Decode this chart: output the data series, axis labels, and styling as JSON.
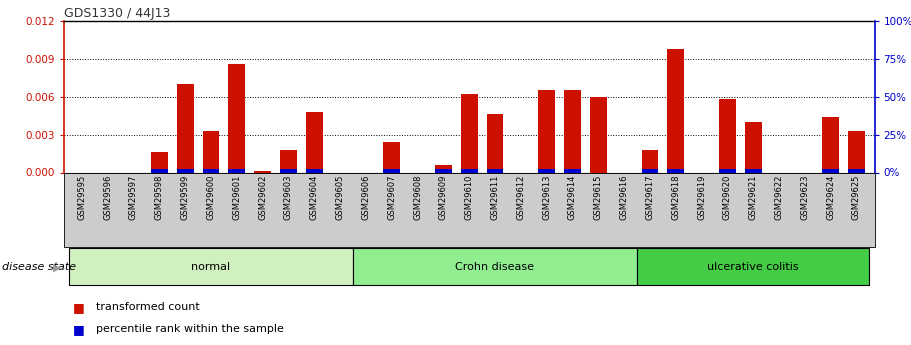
{
  "title": "GDS1330 / 44J13",
  "samples": [
    "GSM29595",
    "GSM29596",
    "GSM29597",
    "GSM29598",
    "GSM29599",
    "GSM29600",
    "GSM29601",
    "GSM29602",
    "GSM29603",
    "GSM29604",
    "GSM29605",
    "GSM29606",
    "GSM29607",
    "GSM29608",
    "GSM29609",
    "GSM29610",
    "GSM29611",
    "GSM29612",
    "GSM29613",
    "GSM29614",
    "GSM29615",
    "GSM29616",
    "GSM29617",
    "GSM29618",
    "GSM29619",
    "GSM29620",
    "GSM29621",
    "GSM29622",
    "GSM29623",
    "GSM29624",
    "GSM29625"
  ],
  "transformed_count": [
    0.0,
    0.0,
    0.0,
    0.0016,
    0.007,
    0.0033,
    0.0086,
    0.0001,
    0.0018,
    0.0048,
    0.0,
    0.0,
    0.0024,
    0.0,
    0.0006,
    0.0062,
    0.0046,
    0.0,
    0.0065,
    0.0065,
    0.006,
    0.0,
    0.0018,
    0.0098,
    0.0,
    0.0058,
    0.004,
    0.0,
    0.0,
    0.0044,
    0.0033
  ],
  "blue_bar_heights": [
    0.0,
    0.0,
    0.0,
    0.00028,
    0.00028,
    0.00028,
    0.00028,
    0.0,
    0.00028,
    0.00028,
    0.0,
    0.0,
    0.00028,
    0.0,
    0.00028,
    0.00028,
    0.00028,
    0.0,
    0.00028,
    0.00028,
    0.0,
    0.0,
    0.00028,
    0.00028,
    0.0,
    0.00028,
    0.00028,
    0.0,
    0.0,
    0.00028,
    0.00028
  ],
  "groups": [
    {
      "label": "normal",
      "start": 0,
      "end": 11,
      "color": "#d0f0c0"
    },
    {
      "label": "Crohn disease",
      "start": 11,
      "end": 22,
      "color": "#90ee90"
    },
    {
      "label": "ulcerative colitis",
      "start": 22,
      "end": 31,
      "color": "#44cc44"
    }
  ],
  "ylim_left": [
    0,
    0.012
  ],
  "ylim_right": [
    0,
    100
  ],
  "yticks_left": [
    0,
    0.003,
    0.006,
    0.009,
    0.012
  ],
  "yticks_right": [
    0,
    25,
    50,
    75,
    100
  ],
  "bar_color_red": "#cc1100",
  "bar_color_blue": "#0000cc",
  "bar_width": 0.65,
  "left_axis_color": "#cc1100",
  "right_axis_color": "#0000cc",
  "disease_state_label": "disease state",
  "legend_red": "transformed count",
  "legend_blue": "percentile rank within the sample",
  "tick_bg_color": "#cccccc",
  "group_border_color": "#000000"
}
